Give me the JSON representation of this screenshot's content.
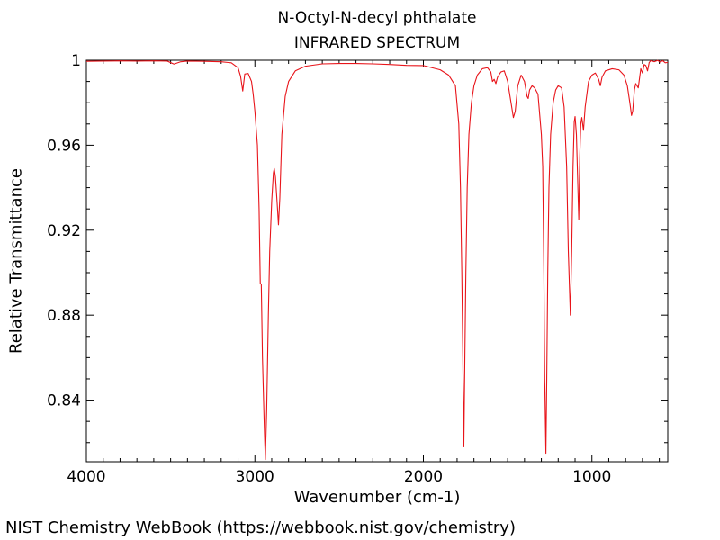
{
  "chart_data": {
    "type": "line",
    "title": "N-Octyl-N-decyl phthalate",
    "subtitle": "INFRARED SPECTRUM",
    "xlabel": "Wavenumber (cm-1)",
    "ylabel": "Relative Transmittance",
    "xlim": [
      4000,
      550
    ],
    "ylim": [
      0.811,
      1.0
    ],
    "x_reversed": true,
    "grid": false,
    "x_ticks": [
      4000,
      3000,
      2000,
      1000
    ],
    "y_ticks": [
      1,
      0.96,
      0.92,
      0.88,
      0.84
    ],
    "x_tick_labels": [
      "4000",
      "3000",
      "2000",
      "1000"
    ],
    "y_tick_labels": [
      "1",
      "0.96",
      "0.92",
      "0.88",
      "0.84"
    ],
    "series": [
      {
        "color": "#e8141a",
        "points": [
          [
            4000,
            0.9995
          ],
          [
            3900,
            0.9996
          ],
          [
            3800,
            0.9997
          ],
          [
            3700,
            0.9996
          ],
          [
            3600,
            0.9997
          ],
          [
            3520,
            0.9996
          ],
          [
            3480,
            0.9982
          ],
          [
            3440,
            0.9993
          ],
          [
            3400,
            0.9996
          ],
          [
            3300,
            0.9995
          ],
          [
            3200,
            0.9993
          ],
          [
            3140,
            0.9988
          ],
          [
            3100,
            0.9965
          ],
          [
            3085,
            0.9925
          ],
          [
            3072,
            0.9855
          ],
          [
            3060,
            0.9935
          ],
          [
            3040,
            0.9938
          ],
          [
            3020,
            0.99
          ],
          [
            3010,
            0.984
          ],
          [
            3000,
            0.976
          ],
          [
            2985,
            0.96
          ],
          [
            2975,
            0.93
          ],
          [
            2968,
            0.895
          ],
          [
            2962,
            0.8945
          ],
          [
            2955,
            0.86
          ],
          [
            2945,
            0.83
          ],
          [
            2938,
            0.812
          ],
          [
            2930,
            0.835
          ],
          [
            2920,
            0.88
          ],
          [
            2912,
            0.91
          ],
          [
            2900,
            0.934
          ],
          [
            2890,
            0.947
          ],
          [
            2885,
            0.949
          ],
          [
            2878,
            0.945
          ],
          [
            2868,
            0.933
          ],
          [
            2860,
            0.9225
          ],
          [
            2852,
            0.935
          ],
          [
            2840,
            0.965
          ],
          [
            2820,
            0.983
          ],
          [
            2800,
            0.99
          ],
          [
            2760,
            0.995
          ],
          [
            2700,
            0.9972
          ],
          [
            2600,
            0.9983
          ],
          [
            2500,
            0.9985
          ],
          [
            2400,
            0.9985
          ],
          [
            2300,
            0.9983
          ],
          [
            2200,
            0.998
          ],
          [
            2100,
            0.9976
          ],
          [
            2000,
            0.9975
          ],
          [
            1950,
            0.9965
          ],
          [
            1900,
            0.9955
          ],
          [
            1850,
            0.993
          ],
          [
            1810,
            0.988
          ],
          [
            1790,
            0.97
          ],
          [
            1780,
            0.94
          ],
          [
            1772,
            0.9
          ],
          [
            1766,
            0.86
          ],
          [
            1760,
            0.818
          ],
          [
            1754,
            0.86
          ],
          [
            1748,
            0.9
          ],
          [
            1740,
            0.94
          ],
          [
            1730,
            0.965
          ],
          [
            1715,
            0.98
          ],
          [
            1700,
            0.988
          ],
          [
            1680,
            0.993
          ],
          [
            1650,
            0.996
          ],
          [
            1620,
            0.9965
          ],
          [
            1600,
            0.9945
          ],
          [
            1590,
            0.99
          ],
          [
            1580,
            0.991
          ],
          [
            1570,
            0.989
          ],
          [
            1560,
            0.992
          ],
          [
            1540,
            0.9945
          ],
          [
            1520,
            0.995
          ],
          [
            1500,
            0.99
          ],
          [
            1480,
            0.98
          ],
          [
            1466,
            0.973
          ],
          [
            1455,
            0.976
          ],
          [
            1440,
            0.988
          ],
          [
            1420,
            0.993
          ],
          [
            1400,
            0.99
          ],
          [
            1385,
            0.983
          ],
          [
            1378,
            0.982
          ],
          [
            1370,
            0.986
          ],
          [
            1355,
            0.988
          ],
          [
            1340,
            0.987
          ],
          [
            1320,
            0.984
          ],
          [
            1300,
            0.965
          ],
          [
            1292,
            0.95
          ],
          [
            1285,
            0.9
          ],
          [
            1280,
            0.85
          ],
          [
            1273,
            0.815
          ],
          [
            1268,
            0.85
          ],
          [
            1262,
            0.9
          ],
          [
            1255,
            0.94
          ],
          [
            1245,
            0.965
          ],
          [
            1230,
            0.98
          ],
          [
            1215,
            0.986
          ],
          [
            1200,
            0.988
          ],
          [
            1180,
            0.987
          ],
          [
            1165,
            0.978
          ],
          [
            1150,
            0.95
          ],
          [
            1140,
            0.91
          ],
          [
            1128,
            0.88
          ],
          [
            1120,
            0.91
          ],
          [
            1112,
            0.95
          ],
          [
            1105,
            0.971
          ],
          [
            1100,
            0.9735
          ],
          [
            1092,
            0.965
          ],
          [
            1085,
            0.945
          ],
          [
            1078,
            0.925
          ],
          [
            1072,
            0.955
          ],
          [
            1066,
            0.97
          ],
          [
            1060,
            0.973
          ],
          [
            1050,
            0.967
          ],
          [
            1040,
            0.978
          ],
          [
            1020,
            0.99
          ],
          [
            1000,
            0.993
          ],
          [
            980,
            0.994
          ],
          [
            960,
            0.991
          ],
          [
            950,
            0.988
          ],
          [
            940,
            0.992
          ],
          [
            920,
            0.995
          ],
          [
            880,
            0.996
          ],
          [
            840,
            0.9955
          ],
          [
            810,
            0.993
          ],
          [
            790,
            0.988
          ],
          [
            775,
            0.98
          ],
          [
            765,
            0.974
          ],
          [
            758,
            0.976
          ],
          [
            748,
            0.986
          ],
          [
            740,
            0.989
          ],
          [
            725,
            0.987
          ],
          [
            710,
            0.996
          ],
          [
            700,
            0.994
          ],
          [
            690,
            0.998
          ],
          [
            680,
            0.9975
          ],
          [
            670,
            0.995
          ],
          [
            660,
            0.999
          ],
          [
            650,
            0.9998
          ],
          [
            630,
            0.9993
          ],
          [
            610,
            0.9999
          ],
          [
            595,
            0.9992
          ],
          [
            580,
            0.9998
          ],
          [
            565,
            0.9988
          ],
          [
            550,
            0.999
          ]
        ]
      }
    ]
  },
  "footer": "NIST Chemistry WebBook (https://webbook.nist.gov/chemistry)"
}
